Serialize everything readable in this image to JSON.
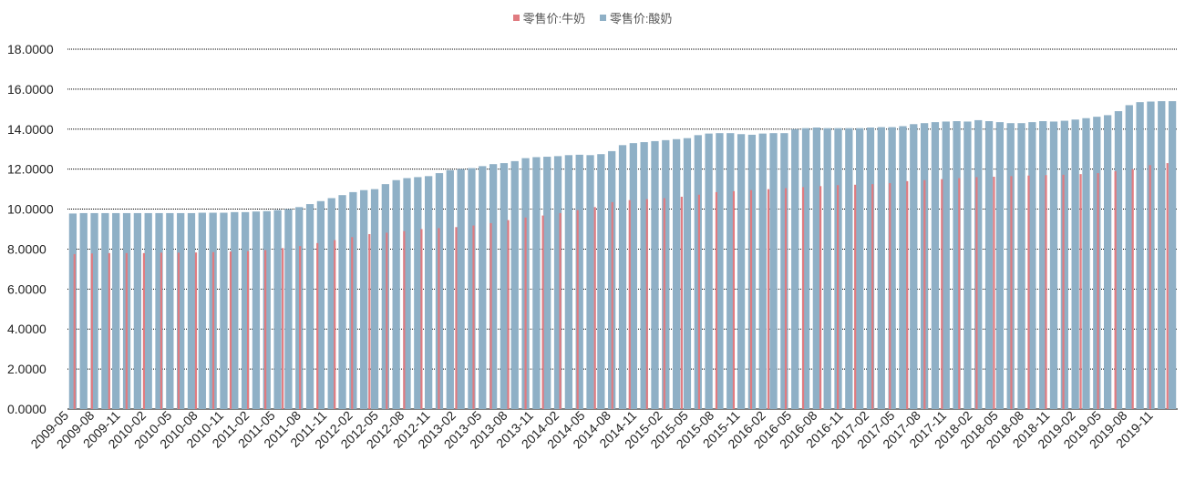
{
  "chart_data": {
    "type": "bar",
    "title": "",
    "xlabel": "",
    "ylabel": "",
    "ylim": [
      0,
      18
    ],
    "y_ticks": [
      "0.0000",
      "2.0000",
      "4.0000",
      "6.0000",
      "8.0000",
      "10.0000",
      "12.0000",
      "14.0000",
      "16.0000",
      "18.0000"
    ],
    "x_tick_labels": [
      "2009-05",
      "2009-08",
      "2009-11",
      "2010-02",
      "2010-05",
      "2010-08",
      "2010-11",
      "2011-02",
      "2011-05",
      "2011-08",
      "2011-11",
      "2012-02",
      "2012-05",
      "2012-08",
      "2012-11",
      "2013-02",
      "2013-05",
      "2013-08",
      "2013-11",
      "2014-02",
      "2014-05",
      "2014-08",
      "2014-11",
      "2015-02",
      "2015-05",
      "2015-08",
      "2015-11",
      "2016-02",
      "2016-05",
      "2016-08",
      "2016-11",
      "2017-02",
      "2017-05",
      "2017-08",
      "2017-11",
      "2018-02",
      "2018-05",
      "2018-08",
      "2018-11",
      "2019-02",
      "2019-05",
      "2019-08",
      "2019-11"
    ],
    "grid": "horizontal-dotted",
    "legend_position": "top-center",
    "series": [
      {
        "name": "零售价:牛奶",
        "color": "#e07b80",
        "note_sampling": "monthly",
        "values": [
          7.75,
          7.78,
          7.8,
          7.8,
          7.8,
          7.82,
          7.82,
          7.83,
          7.85,
          7.88,
          7.9,
          7.95,
          8.05,
          8.15,
          8.3,
          8.45,
          8.6,
          8.75,
          8.82,
          8.9,
          9.0,
          9.05,
          9.1,
          9.18,
          9.3,
          9.45,
          9.58,
          9.68,
          9.8,
          9.95,
          10.1,
          10.35,
          10.45,
          10.5,
          10.55,
          10.62,
          10.72,
          10.85,
          10.9,
          10.95,
          11.0,
          11.05,
          11.1,
          11.15,
          11.2,
          11.22,
          11.25,
          11.3,
          11.4,
          11.45,
          11.5,
          11.55,
          11.6,
          11.62,
          11.65,
          11.68,
          11.7,
          11.72,
          11.75,
          11.8,
          11.9,
          12.0,
          12.2,
          12.3
        ]
      },
      {
        "name": "零售价:酸奶",
        "color": "#8fb0c6",
        "values": [
          9.78,
          9.8,
          9.8,
          9.8,
          9.8,
          9.8,
          9.8,
          9.8,
          9.8,
          9.8,
          9.8,
          9.8,
          9.82,
          9.82,
          9.82,
          9.85,
          9.85,
          9.88,
          9.9,
          9.95,
          10.0,
          10.1,
          10.25,
          10.4,
          10.55,
          10.7,
          10.85,
          10.95,
          11.0,
          11.25,
          11.45,
          11.55,
          11.6,
          11.65,
          11.8,
          11.95,
          12.0,
          12.05,
          12.15,
          12.25,
          12.3,
          12.4,
          12.55,
          12.6,
          12.62,
          12.65,
          12.7,
          12.72,
          12.7,
          12.75,
          12.9,
          13.2,
          13.3,
          13.35,
          13.4,
          13.45,
          13.5,
          13.55,
          13.7,
          13.78,
          13.8,
          13.8,
          13.75,
          13.72,
          13.78,
          13.8,
          13.8,
          14.0,
          14.05,
          14.08,
          14.05,
          14.05,
          14.05,
          14.05,
          14.08,
          14.1,
          14.1,
          14.15,
          14.25,
          14.3,
          14.35,
          14.38,
          14.4,
          14.38,
          14.45,
          14.4,
          14.35,
          14.3,
          14.3,
          14.35,
          14.4,
          14.38,
          14.42,
          14.48,
          14.55,
          14.62,
          14.7,
          14.9,
          15.2,
          15.35,
          15.38,
          15.4,
          15.4
        ]
      }
    ]
  }
}
